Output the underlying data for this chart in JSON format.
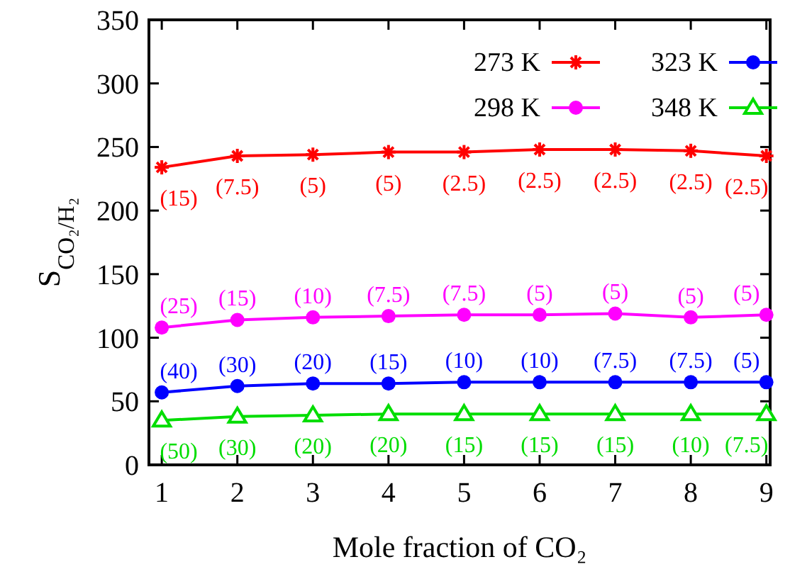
{
  "chart_data": {
    "type": "line",
    "xlabel": "Mole fraction of CO₂",
    "ylabel": "S$_{CO₂/H₂}$",
    "xlim": [
      0.83,
      9.05
    ],
    "ylim": [
      0,
      350
    ],
    "xticks": [
      1,
      2,
      3,
      4,
      5,
      6,
      7,
      8,
      9
    ],
    "yticks": [
      0,
      50,
      100,
      150,
      200,
      250,
      300,
      350
    ],
    "grid": false,
    "legend": "top right",
    "line_style": "solid",
    "series": [
      {
        "name": "273 K",
        "color": "#ff0000",
        "marker": "cross",
        "x": [
          1,
          2,
          3,
          4,
          5,
          6,
          7,
          8,
          9
        ],
        "values": [
          234,
          243,
          244,
          246,
          246,
          248,
          248,
          247,
          243
        ]
      },
      {
        "name": "298 K",
        "color": "#ff00ff",
        "marker": "circle",
        "x": [
          1,
          2,
          3,
          4,
          5,
          6,
          7,
          8,
          9
        ],
        "values": [
          108,
          114,
          116,
          117,
          118,
          118,
          119,
          116,
          118
        ]
      },
      {
        "name": "323 K",
        "color": "#0000ff",
        "marker": "circle",
        "x": [
          1,
          2,
          3,
          4,
          5,
          6,
          7,
          8,
          9
        ],
        "values": [
          57,
          62,
          64,
          64,
          65,
          65,
          65,
          65,
          65
        ]
      },
      {
        "name": "348 K",
        "color": "#00dd00",
        "marker": "triangle",
        "x": [
          1,
          2,
          3,
          4,
          5,
          6,
          7,
          8,
          9
        ],
        "values": [
          35,
          38,
          39,
          40,
          40,
          40,
          40,
          40,
          40
        ]
      }
    ],
    "annotations": [
      {
        "text": "(15)",
        "x": 1,
        "y": 234
      },
      {
        "text": "(7.5)",
        "x": 2,
        "y": 243
      },
      {
        "text": "(5)",
        "x": 3,
        "y": 244
      },
      {
        "text": "(5)",
        "x": 4,
        "y": 246
      },
      {
        "text": "(2.5)",
        "x": 5,
        "y": 246
      },
      {
        "text": "(2.5)",
        "x": 6,
        "y": 248
      },
      {
        "text": "(2.5)",
        "x": 7,
        "y": 248
      },
      {
        "text": "(2.5)",
        "x": 8,
        "y": 247
      },
      {
        "text": "(2.5)",
        "x": 9,
        "y": 243
      },
      {
        "text": "(25)",
        "x": 1,
        "y": 108
      },
      {
        "text": "(15)",
        "x": 2,
        "y": 114
      },
      {
        "text": "(10)",
        "x": 3,
        "y": 116
      },
      {
        "text": "(7.5)",
        "x": 4,
        "y": 117
      },
      {
        "text": "(7.5)",
        "x": 5,
        "y": 118
      },
      {
        "text": "(5)",
        "x": 6,
        "y": 118
      },
      {
        "text": "(5)",
        "x": 7,
        "y": 119
      },
      {
        "text": "(5)",
        "x": 8,
        "y": 116
      },
      {
        "text": "(5)",
        "x": 9,
        "y": 118
      },
      {
        "text": "(40)",
        "x": 1,
        "y": 57
      },
      {
        "text": "(30)",
        "x": 2,
        "y": 62
      },
      {
        "text": "(20)",
        "x": 3,
        "y": 64
      },
      {
        "text": "(15)",
        "x": 4,
        "y": 64
      },
      {
        "text": "(10)",
        "x": 5,
        "y": 65
      },
      {
        "text": "(10)",
        "x": 6,
        "y": 65
      },
      {
        "text": "(7.5)",
        "x": 7,
        "y": 65
      },
      {
        "text": "(7.5)",
        "x": 8,
        "y": 65
      },
      {
        "text": "(5)",
        "x": 9,
        "y": 65
      },
      {
        "text": "(50)",
        "x": 1,
        "y": 35
      },
      {
        "text": "(30)",
        "x": 2,
        "y": 38
      },
      {
        "text": "(20)",
        "x": 3,
        "y": 39
      },
      {
        "text": "(20)",
        "x": 4,
        "y": 40
      },
      {
        "text": "(15)",
        "x": 5,
        "y": 40
      },
      {
        "text": "(15)",
        "x": 6,
        "y": 40
      },
      {
        "text": "(15)",
        "x": 7,
        "y": 40
      },
      {
        "text": "(10)",
        "x": 8,
        "y": 40
      },
      {
        "text": "(7.5)",
        "x": 9,
        "y": 40
      }
    ]
  }
}
